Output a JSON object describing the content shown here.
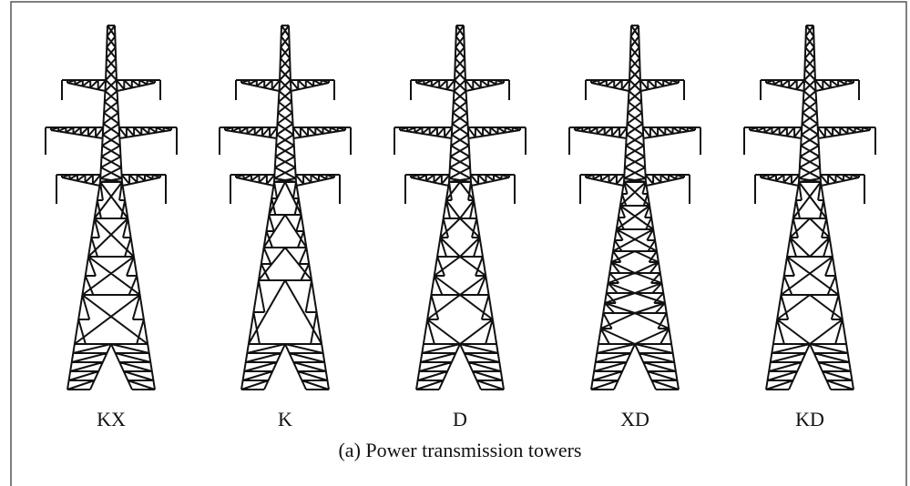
{
  "towers": [
    {
      "label": "KX"
    },
    {
      "label": "K"
    },
    {
      "label": "D"
    },
    {
      "label": "XD"
    },
    {
      "label": "KD"
    }
  ],
  "caption": "(a) Power transmission towers"
}
